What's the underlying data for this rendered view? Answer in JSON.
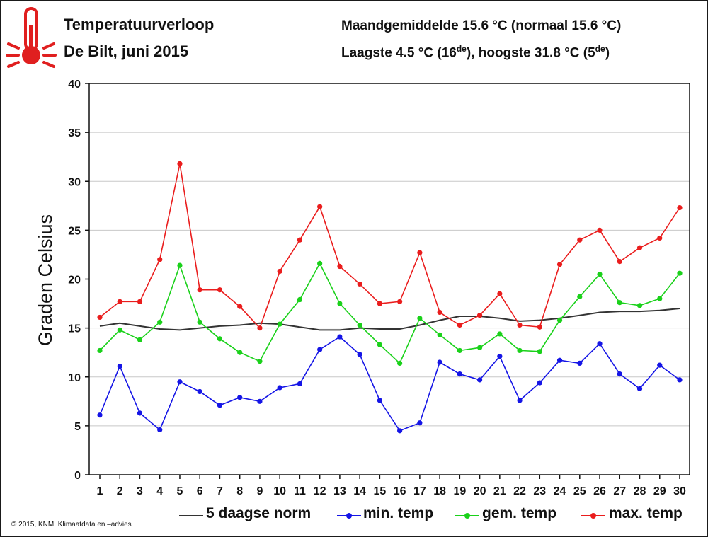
{
  "header": {
    "title": "Temperatuurverloop",
    "subtitle": "De Bilt, juni 2015",
    "avg_line": "Maandgemiddelde 15.6 °C (normaal 15.6 °C)",
    "ext_prefix": "Laagste 4.5 °C (16",
    "ext_mid": "), hoogste 31.8 °C (5",
    "ext_suffix": ")",
    "ordinal": "de"
  },
  "credit": "© 2015, KNMI Klimaatdata en –advies",
  "colors": {
    "norm": "#333333",
    "min": "#1515e6",
    "gem": "#1ad11a",
    "max": "#ea1d1d",
    "grid": "#c8c8c8",
    "icon": "#e01f1f"
  },
  "chart_data": {
    "type": "line",
    "ylabel": "Graden Celsius",
    "ylim": [
      0,
      40
    ],
    "yticks": [
      0,
      5,
      10,
      15,
      20,
      25,
      30,
      35,
      40
    ],
    "categories": [
      "1",
      "2",
      "3",
      "4",
      "5",
      "6",
      "7",
      "8",
      "9",
      "10",
      "11",
      "12",
      "13",
      "14",
      "15",
      "16",
      "17",
      "18",
      "19",
      "20",
      "21",
      "22",
      "23",
      "24",
      "25",
      "26",
      "27",
      "28",
      "29",
      "30"
    ],
    "series": [
      {
        "key": "norm",
        "name": "5 daagse norm",
        "markers": false,
        "values": [
          15.2,
          15.5,
          15.2,
          14.9,
          14.8,
          15.0,
          15.2,
          15.3,
          15.5,
          15.4,
          15.1,
          14.8,
          14.8,
          15.0,
          14.9,
          14.9,
          15.3,
          15.8,
          16.2,
          16.2,
          16.0,
          15.7,
          15.8,
          16.0,
          16.3,
          16.6,
          16.7,
          16.7,
          16.8,
          17.0
        ]
      },
      {
        "key": "min",
        "name": "min. temp",
        "markers": true,
        "values": [
          6.1,
          11.1,
          6.3,
          4.6,
          9.5,
          8.5,
          7.1,
          7.9,
          7.5,
          8.9,
          9.3,
          12.8,
          14.1,
          12.3,
          7.6,
          4.5,
          5.3,
          11.5,
          10.3,
          9.7,
          12.1,
          7.6,
          9.4,
          11.7,
          11.4,
          13.4,
          10.3,
          8.8,
          11.2,
          9.7
        ]
      },
      {
        "key": "gem",
        "name": "gem. temp",
        "markers": true,
        "values": [
          12.7,
          14.8,
          13.8,
          15.6,
          21.4,
          15.6,
          13.9,
          12.5,
          11.6,
          15.4,
          17.9,
          21.6,
          17.5,
          15.3,
          13.3,
          11.4,
          16.0,
          14.3,
          12.7,
          13.0,
          14.4,
          12.7,
          12.6,
          15.8,
          18.2,
          20.5,
          17.6,
          17.3,
          18.0,
          20.6
        ]
      },
      {
        "key": "max",
        "name": "max. temp",
        "markers": true,
        "values": [
          16.1,
          17.7,
          17.7,
          22.0,
          31.8,
          18.9,
          18.9,
          17.2,
          15.0,
          20.8,
          24.0,
          27.4,
          21.3,
          19.5,
          17.5,
          17.7,
          22.7,
          16.6,
          15.3,
          16.3,
          18.5,
          15.3,
          15.1,
          21.5,
          24.0,
          25.0,
          21.8,
          23.2,
          24.2,
          27.3
        ]
      }
    ]
  }
}
